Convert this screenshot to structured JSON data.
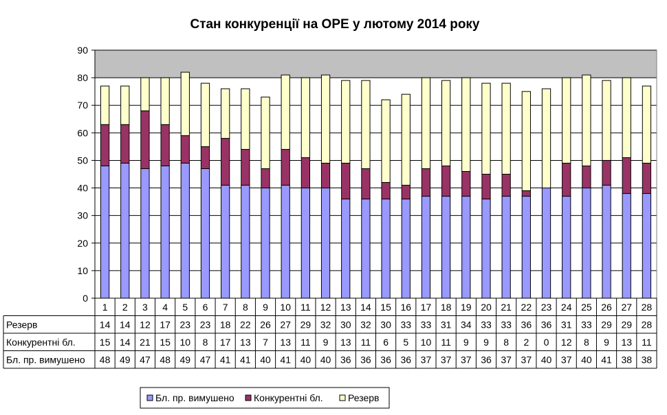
{
  "chart_data": {
    "type": "bar",
    "stacked": true,
    "title": "Стан конкуренції на ОРЕ  у лютому 2014 року",
    "xlabel": "",
    "ylabel": "",
    "ylim": [
      0,
      90
    ],
    "yticks": [
      0,
      10,
      20,
      30,
      40,
      50,
      60,
      70,
      80,
      90
    ],
    "grid": true,
    "legend": "bottom",
    "data_table": true,
    "plot_background": "#c0c0c0",
    "categories": [
      "1",
      "2",
      "3",
      "4",
      "5",
      "6",
      "7",
      "8",
      "9",
      "10",
      "11",
      "12",
      "13",
      "14",
      "15",
      "16",
      "17",
      "18",
      "19",
      "20",
      "21",
      "22",
      "23",
      "24",
      "25",
      "26",
      "27",
      "28"
    ],
    "series": [
      {
        "name": "Бл. пр. вимушено",
        "color": "#9999ff",
        "values": [
          48,
          49,
          47,
          48,
          49,
          47,
          41,
          41,
          40,
          41,
          40,
          40,
          36,
          36,
          36,
          36,
          37,
          37,
          37,
          36,
          37,
          37,
          40,
          37,
          40,
          41,
          38,
          38
        ]
      },
      {
        "name": "Конкурентні бл.",
        "color": "#993366",
        "values": [
          15,
          14,
          21,
          15,
          10,
          8,
          17,
          13,
          7,
          13,
          11,
          9,
          13,
          11,
          6,
          5,
          10,
          11,
          9,
          9,
          8,
          2,
          0,
          12,
          8,
          9,
          13,
          11
        ]
      },
      {
        "name": "Резерв",
        "color": "#ffffcc",
        "values": [
          14,
          14,
          12,
          17,
          23,
          23,
          18,
          22,
          26,
          27,
          29,
          32,
          30,
          32,
          30,
          33,
          33,
          31,
          34,
          33,
          33,
          36,
          36,
          31,
          33,
          29,
          29,
          28
        ]
      }
    ]
  }
}
